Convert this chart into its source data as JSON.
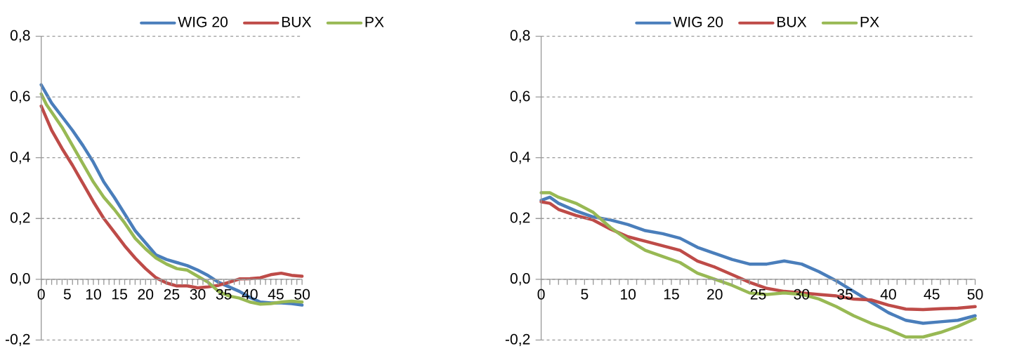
{
  "chart_data": [
    {
      "type": "line",
      "x": [
        0,
        1,
        2,
        4,
        6,
        8,
        10,
        12,
        14,
        16,
        18,
        20,
        22,
        24,
        26,
        28,
        30,
        32,
        34,
        36,
        38,
        40,
        42,
        44,
        46,
        48,
        50
      ],
      "xlim": [
        0,
        50
      ],
      "xticks": [
        0,
        5,
        10,
        15,
        20,
        25,
        30,
        35,
        40,
        45,
        50
      ],
      "ylim": [
        -0.2,
        0.8
      ],
      "yticks": [
        {
          "value": -0.2,
          "label": "-0,2"
        },
        {
          "value": 0,
          "label": "0,0"
        },
        {
          "value": 0.2,
          "label": "0,2"
        },
        {
          "value": 0.4,
          "label": "0,4"
        },
        {
          "value": 0.6,
          "label": "0,6"
        },
        {
          "value": 0.8,
          "label": "0,8"
        }
      ],
      "grid": "y",
      "legend": "top",
      "series": [
        {
          "name": "WIG 20",
          "color": "#4a7ebb",
          "values": [
            0.64,
            0.61,
            0.58,
            0.535,
            0.49,
            0.44,
            0.385,
            0.32,
            0.27,
            0.215,
            0.16,
            0.12,
            0.08,
            0.065,
            0.055,
            0.045,
            0.03,
            0.012,
            -0.01,
            -0.025,
            -0.04,
            -0.06,
            -0.075,
            -0.078,
            -0.078,
            -0.08,
            -0.085
          ]
        },
        {
          "name": "BUX",
          "color": "#be4b48",
          "values": [
            0.57,
            0.53,
            0.49,
            0.43,
            0.375,
            0.315,
            0.255,
            0.2,
            0.155,
            0.11,
            0.07,
            0.035,
            0.005,
            -0.012,
            -0.022,
            -0.022,
            -0.028,
            -0.025,
            -0.02,
            -0.01,
            0.001,
            0.002,
            0.005,
            0.015,
            0.02,
            0.013,
            0.01
          ]
        },
        {
          "name": "PX",
          "color": "#98b954",
          "values": [
            0.61,
            0.575,
            0.55,
            0.5,
            0.44,
            0.38,
            0.32,
            0.27,
            0.23,
            0.185,
            0.135,
            0.1,
            0.07,
            0.05,
            0.035,
            0.03,
            0.01,
            -0.01,
            -0.04,
            -0.055,
            -0.062,
            -0.075,
            -0.082,
            -0.08,
            -0.075,
            -0.072,
            -0.075
          ]
        }
      ]
    },
    {
      "type": "line",
      "x": [
        0,
        1,
        2,
        4,
        6,
        8,
        10,
        12,
        14,
        16,
        18,
        20,
        22,
        24,
        26,
        28,
        30,
        32,
        34,
        36,
        38,
        40,
        42,
        44,
        46,
        48,
        50
      ],
      "xlim": [
        0,
        50
      ],
      "xticks": [
        0,
        5,
        10,
        15,
        20,
        25,
        30,
        35,
        40,
        45,
        50
      ],
      "ylim": [
        -0.2,
        0.8
      ],
      "yticks": [
        {
          "value": -0.2,
          "label": "-0,2"
        },
        {
          "value": 0,
          "label": "0,0"
        },
        {
          "value": 0.2,
          "label": "0,2"
        },
        {
          "value": 0.4,
          "label": "0,4"
        },
        {
          "value": 0.6,
          "label": "0,6"
        },
        {
          "value": 0.8,
          "label": "0,8"
        }
      ],
      "grid": "y",
      "legend": "top",
      "series": [
        {
          "name": "WIG 20",
          "color": "#4a7ebb",
          "values": [
            0.26,
            0.27,
            0.25,
            0.225,
            0.205,
            0.195,
            0.18,
            0.16,
            0.15,
            0.135,
            0.105,
            0.085,
            0.065,
            0.05,
            0.05,
            0.06,
            0.05,
            0.025,
            -0.005,
            -0.04,
            -0.075,
            -0.11,
            -0.135,
            -0.145,
            -0.14,
            -0.135,
            -0.12
          ]
        },
        {
          "name": "BUX",
          "color": "#be4b48",
          "values": [
            0.255,
            0.25,
            0.23,
            0.21,
            0.195,
            0.165,
            0.14,
            0.125,
            0.11,
            0.095,
            0.06,
            0.04,
            0.015,
            -0.01,
            -0.03,
            -0.04,
            -0.045,
            -0.05,
            -0.055,
            -0.065,
            -0.068,
            -0.085,
            -0.098,
            -0.1,
            -0.097,
            -0.095,
            -0.09
          ]
        },
        {
          "name": "PX",
          "color": "#98b954",
          "values": [
            0.285,
            0.285,
            0.27,
            0.25,
            0.22,
            0.17,
            0.13,
            0.095,
            0.075,
            0.055,
            0.02,
            0.0,
            -0.02,
            -0.045,
            -0.05,
            -0.045,
            -0.05,
            -0.065,
            -0.09,
            -0.12,
            -0.145,
            -0.165,
            -0.19,
            -0.19,
            -0.175,
            -0.155,
            -0.13
          ]
        }
      ]
    }
  ]
}
